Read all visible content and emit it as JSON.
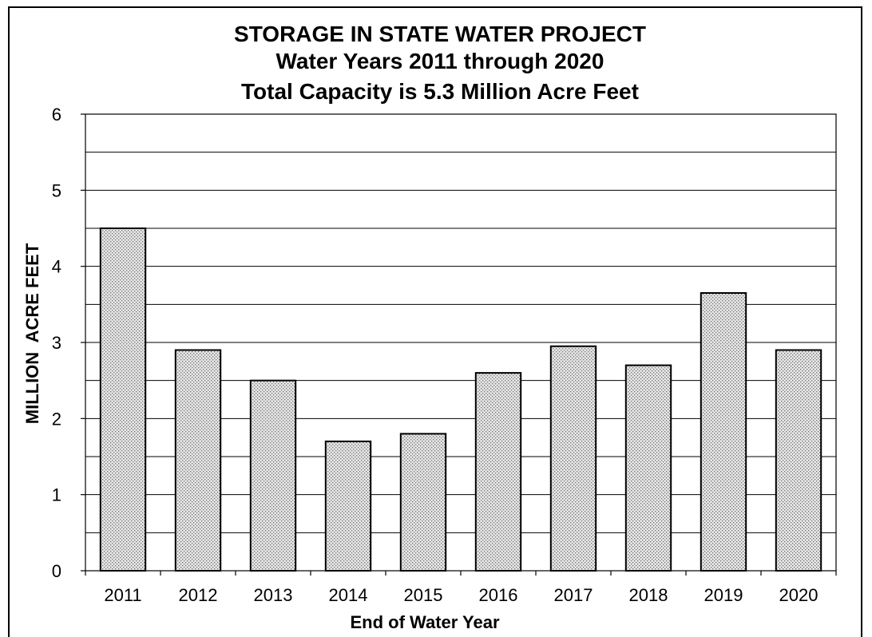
{
  "chart_data": {
    "type": "bar",
    "title": [
      "STORAGE IN STATE WATER PROJECT",
      "Water Years 2011 through 2020",
      "Total Capacity is 5.3 Million Acre Feet"
    ],
    "xlabel": "End of Water Year",
    "ylabel": "MILLION  ACRE FEET",
    "categories": [
      "2011",
      "2012",
      "2013",
      "2014",
      "2015",
      "2016",
      "2017",
      "2018",
      "2019",
      "2020"
    ],
    "values": [
      4.5,
      2.9,
      2.5,
      1.7,
      1.8,
      2.6,
      2.95,
      2.7,
      3.65,
      2.9
    ],
    "ylim": [
      0,
      6
    ],
    "yticks": [
      "0",
      "1",
      "2",
      "3",
      "4",
      "5",
      "6"
    ],
    "grid": true,
    "legend": "none",
    "bar_fill": "#d9d9d9",
    "bar_pattern": "dotted"
  }
}
